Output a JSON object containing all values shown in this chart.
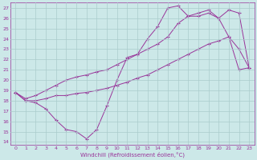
{
  "xlabel": "Windchill (Refroidissement éolien,°C)",
  "bg_color": "#cce8e8",
  "line_color": "#993399",
  "grid_color": "#aacccc",
  "xlim": [
    -0.5,
    23.5
  ],
  "ylim": [
    13.7,
    27.5
  ],
  "xticks": [
    0,
    1,
    2,
    3,
    4,
    5,
    6,
    7,
    8,
    9,
    10,
    11,
    12,
    13,
    14,
    15,
    16,
    17,
    18,
    19,
    20,
    21,
    22,
    23
  ],
  "yticks": [
    14,
    15,
    16,
    17,
    18,
    19,
    20,
    21,
    22,
    23,
    24,
    25,
    26,
    27
  ],
  "line1_x": [
    0,
    1,
    2,
    3,
    4,
    5,
    6,
    7,
    8,
    9,
    10,
    11,
    12,
    13,
    14,
    15,
    16,
    17,
    18,
    19,
    20,
    21,
    22,
    23
  ],
  "line1_y": [
    18.8,
    18.0,
    17.8,
    17.2,
    16.1,
    15.2,
    15.0,
    14.3,
    15.2,
    17.5,
    20.0,
    22.2,
    22.5,
    24.0,
    25.2,
    27.0,
    27.2,
    26.2,
    26.2,
    26.5,
    26.0,
    24.2,
    23.0,
    21.2
  ],
  "line2_x": [
    0,
    1,
    2,
    3,
    4,
    5,
    6,
    7,
    8,
    9,
    10,
    11,
    12,
    13,
    14,
    15,
    16,
    17,
    18,
    19,
    20,
    21,
    22,
    23
  ],
  "line2_y": [
    18.8,
    18.0,
    18.0,
    18.2,
    18.5,
    18.5,
    18.7,
    18.8,
    19.0,
    19.2,
    19.5,
    19.8,
    20.2,
    20.5,
    21.0,
    21.5,
    22.0,
    22.5,
    23.0,
    23.5,
    23.8,
    24.2,
    21.0,
    21.2
  ],
  "line3_x": [
    0,
    1,
    2,
    3,
    4,
    5,
    6,
    7,
    8,
    9,
    10,
    11,
    12,
    13,
    14,
    15,
    16,
    17,
    18,
    19,
    20,
    21,
    22,
    23
  ],
  "line3_y": [
    18.8,
    18.2,
    18.5,
    19.0,
    19.5,
    20.0,
    20.3,
    20.5,
    20.8,
    21.0,
    21.5,
    22.0,
    22.5,
    23.0,
    23.5,
    24.2,
    25.5,
    26.2,
    26.5,
    26.8,
    26.0,
    26.8,
    26.5,
    21.2
  ]
}
